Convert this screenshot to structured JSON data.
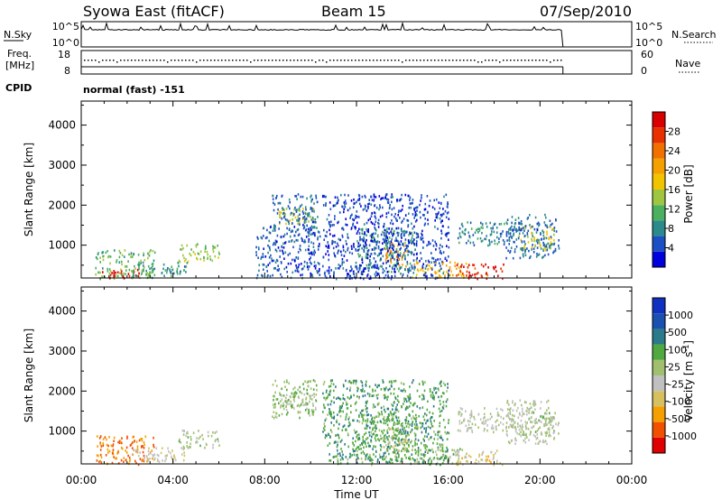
{
  "header": {
    "station": "Syowa East (fitACF)",
    "beam": "Beam 15",
    "date": "07/Sep/2010"
  },
  "top_panels": {
    "nsky_label": "N.Sky",
    "nsky_ticks": [
      "10^5",
      "10^0"
    ],
    "nsearch_label": "N.Search",
    "freq_label_1": "Freq.",
    "freq_label_2": "[MHz]",
    "freq_ticks": [
      "18",
      "8"
    ],
    "nave_ticks": [
      "60",
      "0"
    ],
    "nave_label": "Nave",
    "cpid_label": "CPID",
    "cpid_value": "normal (fast) -151"
  },
  "chart_data": [
    {
      "type": "heatmap",
      "name": "power-panel",
      "xlabel": "Time UT",
      "ylabel": "Slant Range [km]",
      "x_ticks": [
        "00:00",
        "04:00",
        "08:00",
        "12:00",
        "16:00",
        "20:00",
        "00:00"
      ],
      "x_range_hours": [
        0,
        24
      ],
      "y_ticks": [
        "4000",
        "3000",
        "2000",
        "1000"
      ],
      "y_range_km": [
        180,
        4600
      ],
      "colorbar_label": "Power [dB]",
      "colorbar_ticks": [
        "28",
        "24",
        "20",
        "16",
        "12",
        "8",
        "4"
      ],
      "colorbar_range": [
        0,
        32
      ],
      "colors": [
        "#0000dd",
        "#1c4fc4",
        "#2c8a8c",
        "#4cb060",
        "#9fc640",
        "#f2c400",
        "#f4a000",
        "#f07000",
        "#e83000",
        "#d80000"
      ],
      "regions": [
        {
          "t": [
            0.8,
            2.6
          ],
          "r": [
            180,
            420
          ],
          "v": 30
        },
        {
          "t": [
            0.6,
            3.2
          ],
          "r": [
            180,
            900
          ],
          "v": 12
        },
        {
          "t": [
            2.2,
            4.6
          ],
          "r": [
            250,
            600
          ],
          "v": 9
        },
        {
          "t": [
            4.2,
            6.0
          ],
          "r": [
            600,
            1050
          ],
          "v": 14
        },
        {
          "t": [
            8.6,
            10.2
          ],
          "r": [
            1550,
            1950
          ],
          "v": 16
        },
        {
          "t": [
            8.3,
            10.3
          ],
          "r": [
            1350,
            2300
          ],
          "v": 6
        },
        {
          "t": [
            7.6,
            10.4
          ],
          "r": [
            180,
            1500
          ],
          "v": 5
        },
        {
          "t": [
            12.0,
            14.6
          ],
          "r": [
            300,
            1450
          ],
          "v": 10
        },
        {
          "t": [
            13.2,
            14.2
          ],
          "r": [
            500,
            1100
          ],
          "v": 22
        },
        {
          "t": [
            14.4,
            16.8
          ],
          "r": [
            200,
            600
          ],
          "v": 19
        },
        {
          "t": [
            16.3,
            18.4
          ],
          "r": [
            180,
            550
          ],
          "v": 28
        },
        {
          "t": [
            16.4,
            19.0
          ],
          "r": [
            1000,
            1600
          ],
          "v": 8
        },
        {
          "t": [
            19.0,
            20.6
          ],
          "r": [
            900,
            1500
          ],
          "v": 16
        },
        {
          "t": [
            10.5,
            16.0
          ],
          "r": [
            180,
            2300
          ],
          "v": 4
        },
        {
          "t": [
            18.5,
            20.8
          ],
          "r": [
            700,
            1800
          ],
          "v": 6
        }
      ]
    },
    {
      "type": "heatmap",
      "name": "velocity-panel",
      "xlabel": "Time UT",
      "ylabel": "Slant Range [km]",
      "x_ticks": [
        "00:00",
        "04:00",
        "08:00",
        "12:00",
        "16:00",
        "20:00",
        "00:00"
      ],
      "x_range_hours": [
        0,
        24
      ],
      "y_ticks": [
        "4000",
        "3000",
        "2000",
        "1000"
      ],
      "y_range_km": [
        180,
        4600
      ],
      "colorbar_label": "Velocity [m s^-1]",
      "colorbar_ticks": [
        "1000",
        "500",
        "100",
        "25",
        "-25",
        "-100",
        "-500",
        "-1000"
      ],
      "colorbar_range": [
        -1200,
        1200
      ],
      "colors": [
        "#e00000",
        "#f05000",
        "#f5a000",
        "#d6c060",
        "#c0c0c0",
        "#a0c070",
        "#50a840",
        "#2a7a8a",
        "#1b4fb0",
        "#1030c0"
      ],
      "regions": [
        {
          "t": [
            0.6,
            3.2
          ],
          "r": [
            180,
            900
          ],
          "v": -700
        },
        {
          "t": [
            2.2,
            4.6
          ],
          "r": [
            250,
            600
          ],
          "v": -200
        },
        {
          "t": [
            4.2,
            6.0
          ],
          "r": [
            600,
            1050
          ],
          "v": 80
        },
        {
          "t": [
            8.6,
            10.2
          ],
          "r": [
            1550,
            1950
          ],
          "v": 0
        },
        {
          "t": [
            8.3,
            10.3
          ],
          "r": [
            1350,
            2300
          ],
          "v": 200
        },
        {
          "t": [
            12.0,
            14.6
          ],
          "r": [
            300,
            1450
          ],
          "v": 300
        },
        {
          "t": [
            13.2,
            14.2
          ],
          "r": [
            500,
            1100
          ],
          "v": -150
        },
        {
          "t": [
            14.4,
            16.8
          ],
          "r": [
            200,
            600
          ],
          "v": 150
        },
        {
          "t": [
            16.3,
            18.4
          ],
          "r": [
            180,
            550
          ],
          "v": -300
        },
        {
          "t": [
            16.4,
            19.0
          ],
          "r": [
            1000,
            1600
          ],
          "v": 0
        },
        {
          "t": [
            19.0,
            20.6
          ],
          "r": [
            900,
            1500
          ],
          "v": 120
        },
        {
          "t": [
            10.5,
            16.0
          ],
          "r": [
            180,
            2300
          ],
          "v": 400
        },
        {
          "t": [
            18.5,
            20.8
          ],
          "r": [
            700,
            1800
          ],
          "v": 20
        }
      ]
    }
  ]
}
